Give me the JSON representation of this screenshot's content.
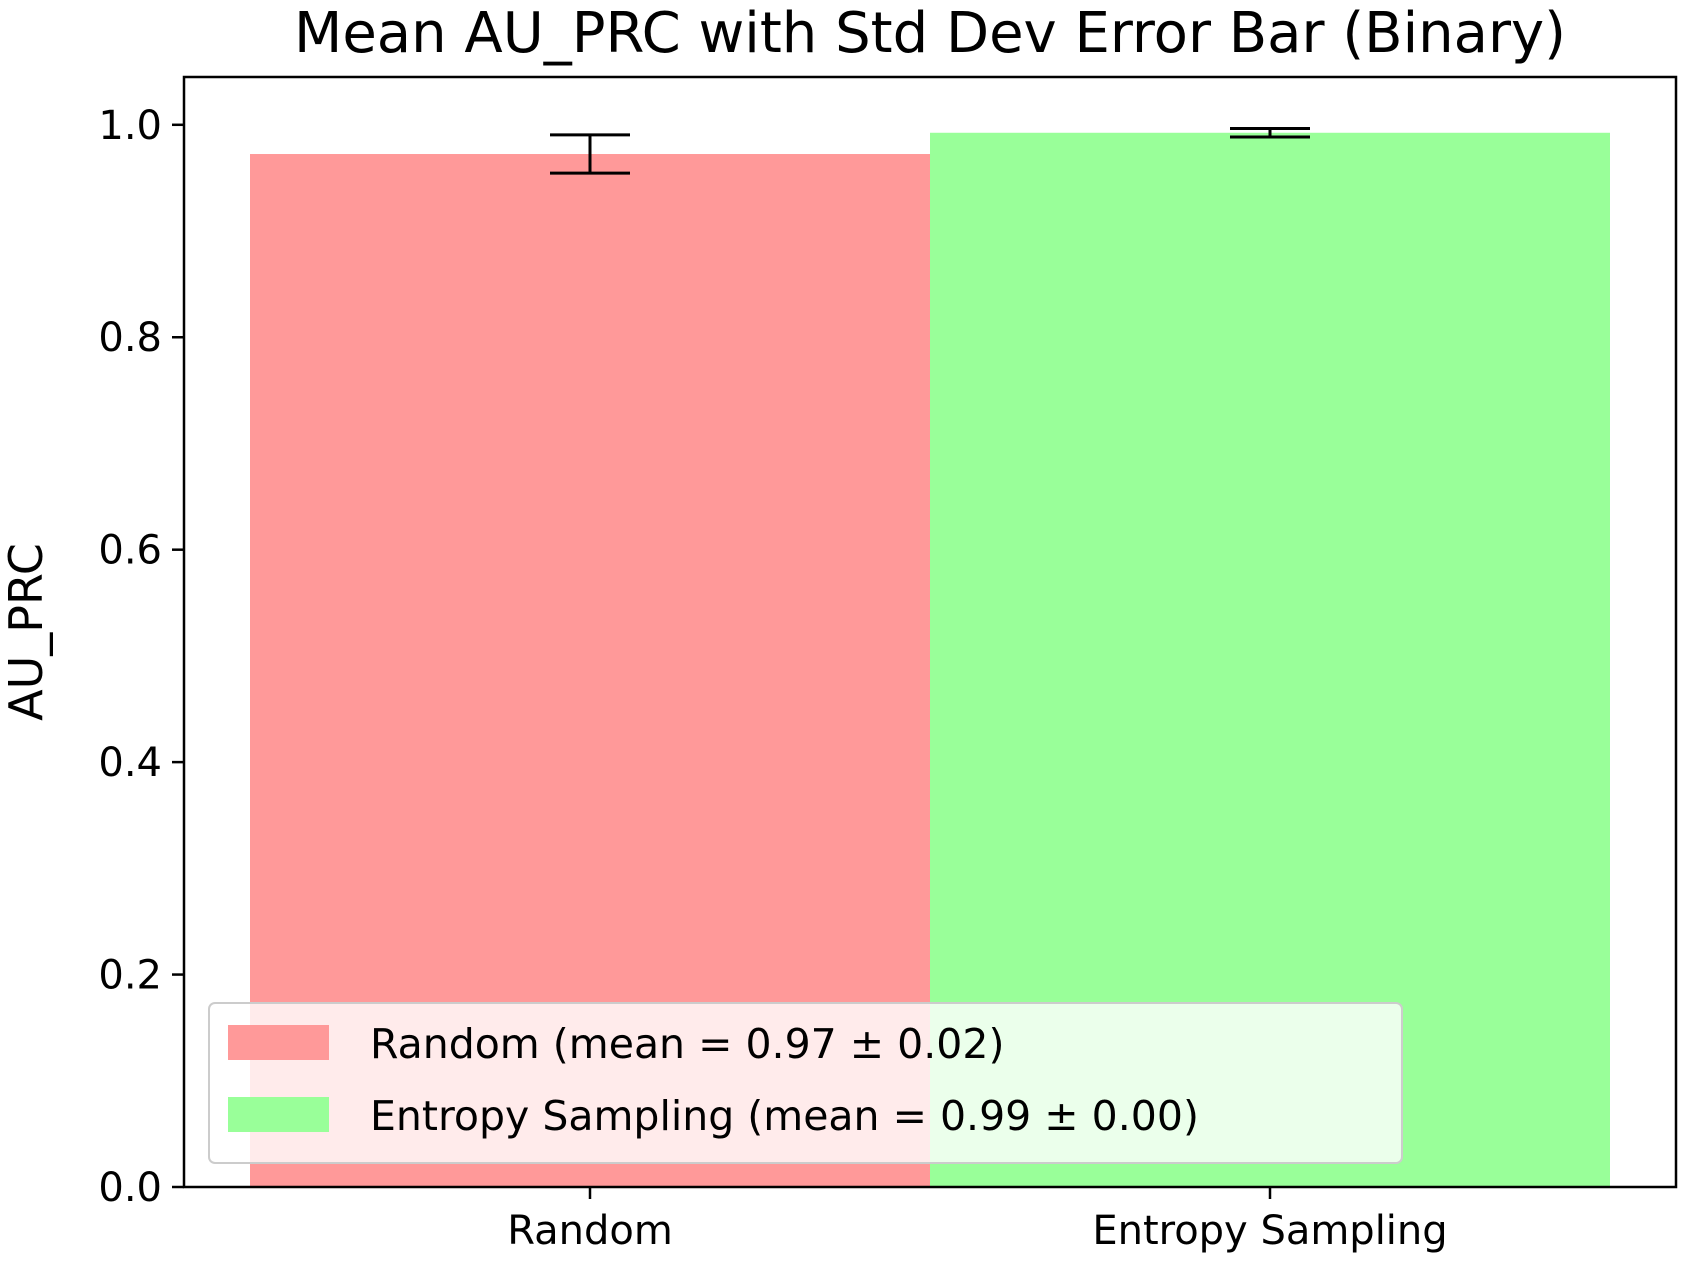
{
  "chart_data": {
    "type": "bar",
    "title": "Mean AU_PRC with Std Dev Error Bar (Binary)",
    "xlabel": "",
    "ylabel": "AU_PRC",
    "categories": [
      "Random",
      "Entropy Sampling"
    ],
    "values": [
      0.9725,
      0.9925
    ],
    "errors": [
      0.018,
      0.004
    ],
    "colors": [
      "#ff9999",
      "#99ff99"
    ],
    "ylim": [
      0,
      1.045
    ],
    "yticks": [
      "0.0",
      "0.2",
      "0.4",
      "0.6",
      "0.8",
      "1.0"
    ],
    "ytick_values": [
      0.0,
      0.2,
      0.4,
      0.6,
      0.8,
      1.0
    ],
    "grid": false,
    "legend": {
      "placement": "lower-left",
      "entries": [
        "Random (mean = 0.97 ± 0.02)",
        "Entropy Sampling (mean = 0.99 ± 0.00)"
      ]
    }
  }
}
